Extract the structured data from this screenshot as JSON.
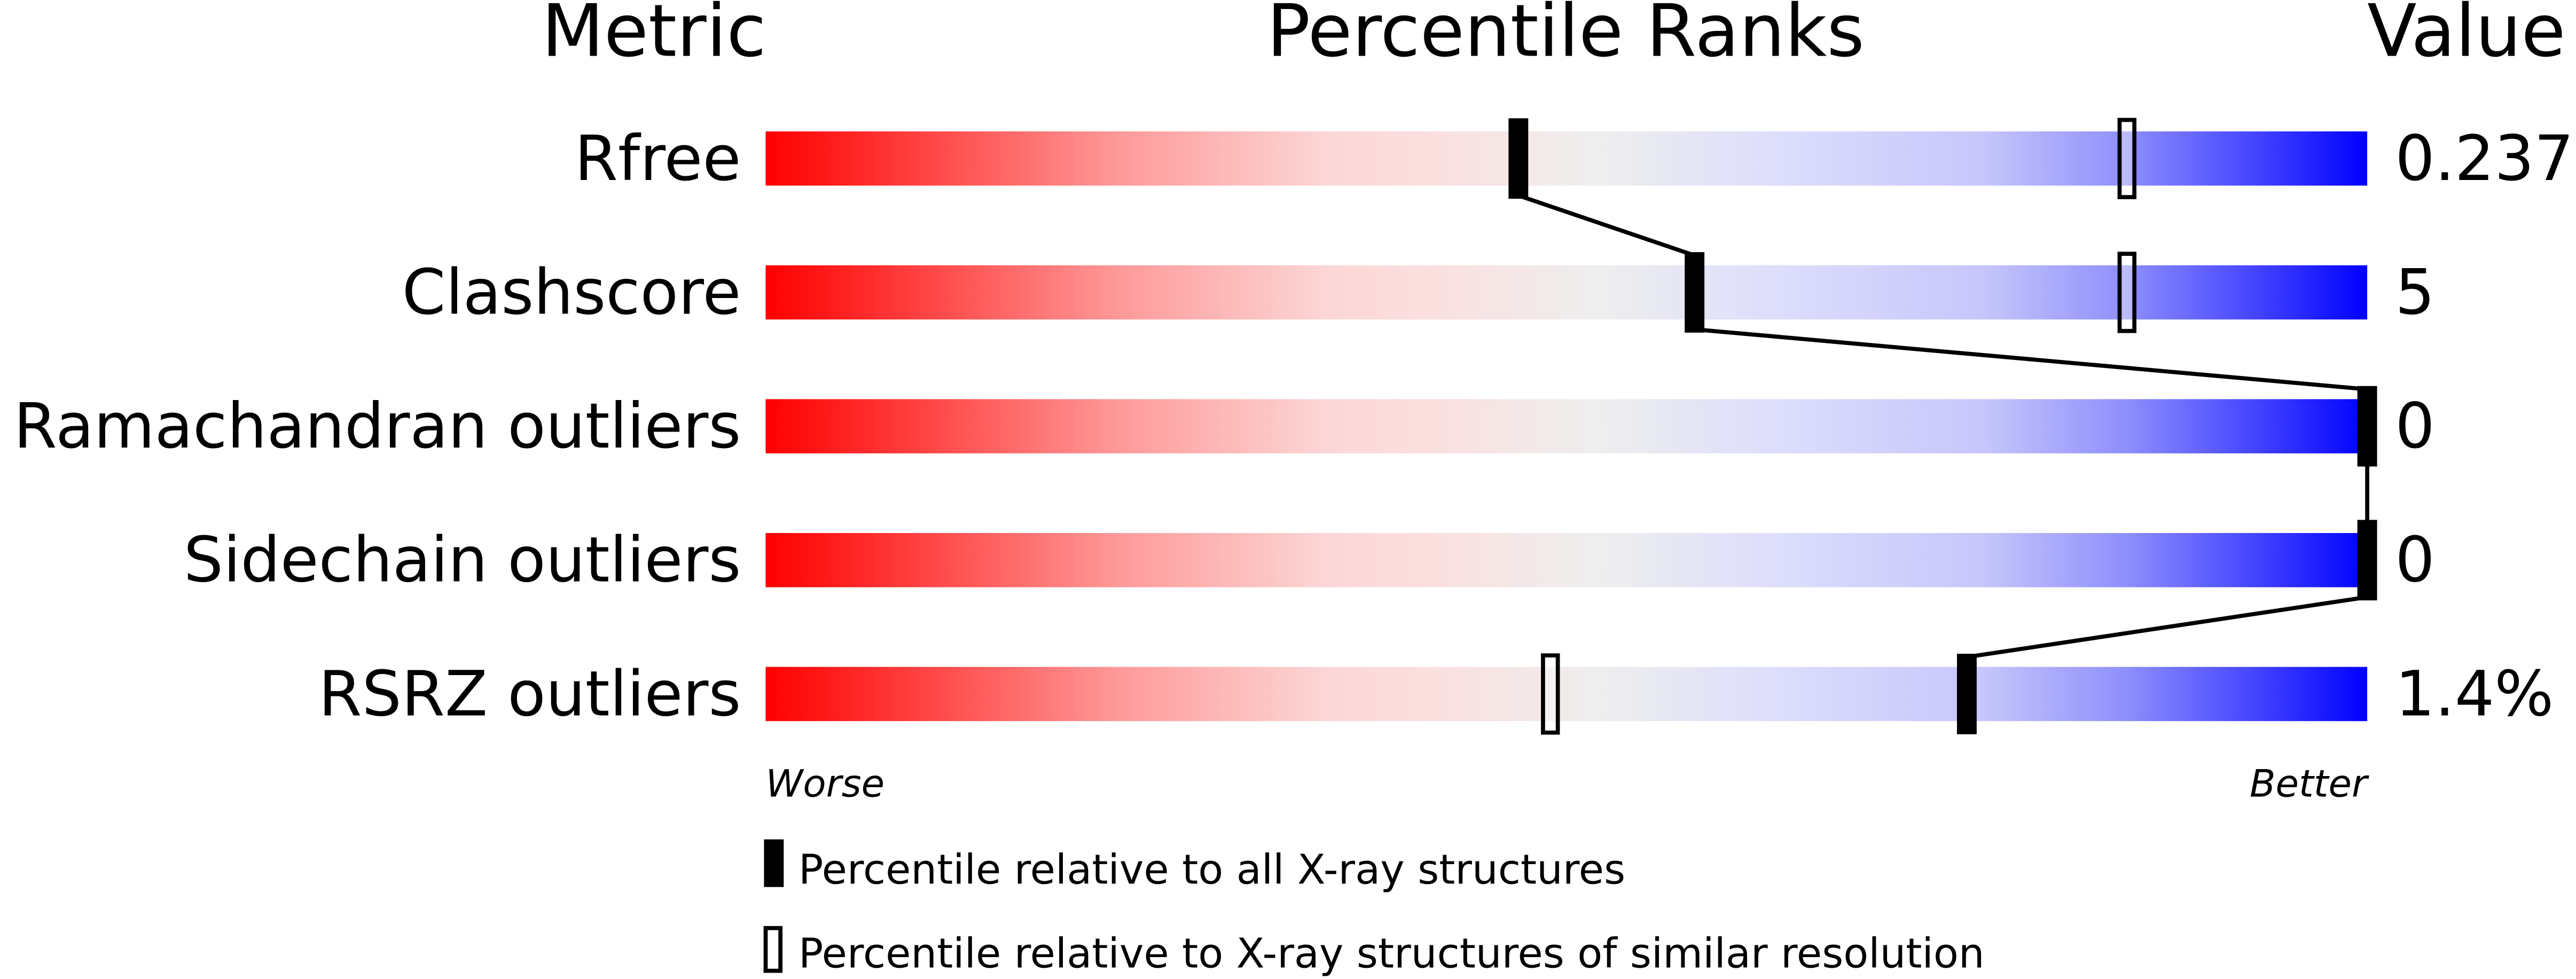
{
  "chart_data": {
    "type": "percentile-slider",
    "headers": {
      "metric": "Metric",
      "ranks": "Percentile Ranks",
      "value": "Value"
    },
    "xlim": [
      0,
      100
    ],
    "axis_ends": {
      "left": "Worse",
      "right": "Better"
    },
    "gradient_colors": [
      "#ff0000",
      "#fddddd",
      "#eeeeee",
      "#ddddff",
      "#0000ff"
    ],
    "metrics": [
      {
        "name": "Rfree",
        "value": "0.237",
        "percentile_all": 47,
        "percentile_similar": 85
      },
      {
        "name": "Clashscore",
        "value": "5",
        "percentile_all": 58,
        "percentile_similar": 85
      },
      {
        "name": "Ramachandran outliers",
        "value": "0",
        "percentile_all": 100,
        "percentile_similar": null
      },
      {
        "name": "Sidechain outliers",
        "value": "0",
        "percentile_all": 100,
        "percentile_similar": null
      },
      {
        "name": "RSRZ outliers",
        "value": "1.4%",
        "percentile_all": 75,
        "percentile_similar": 49
      }
    ],
    "legend": [
      {
        "marker": "filled",
        "label": "Percentile relative to all X-ray structures"
      },
      {
        "marker": "hollow",
        "label": "Percentile relative to X-ray structures of similar resolution"
      }
    ]
  }
}
